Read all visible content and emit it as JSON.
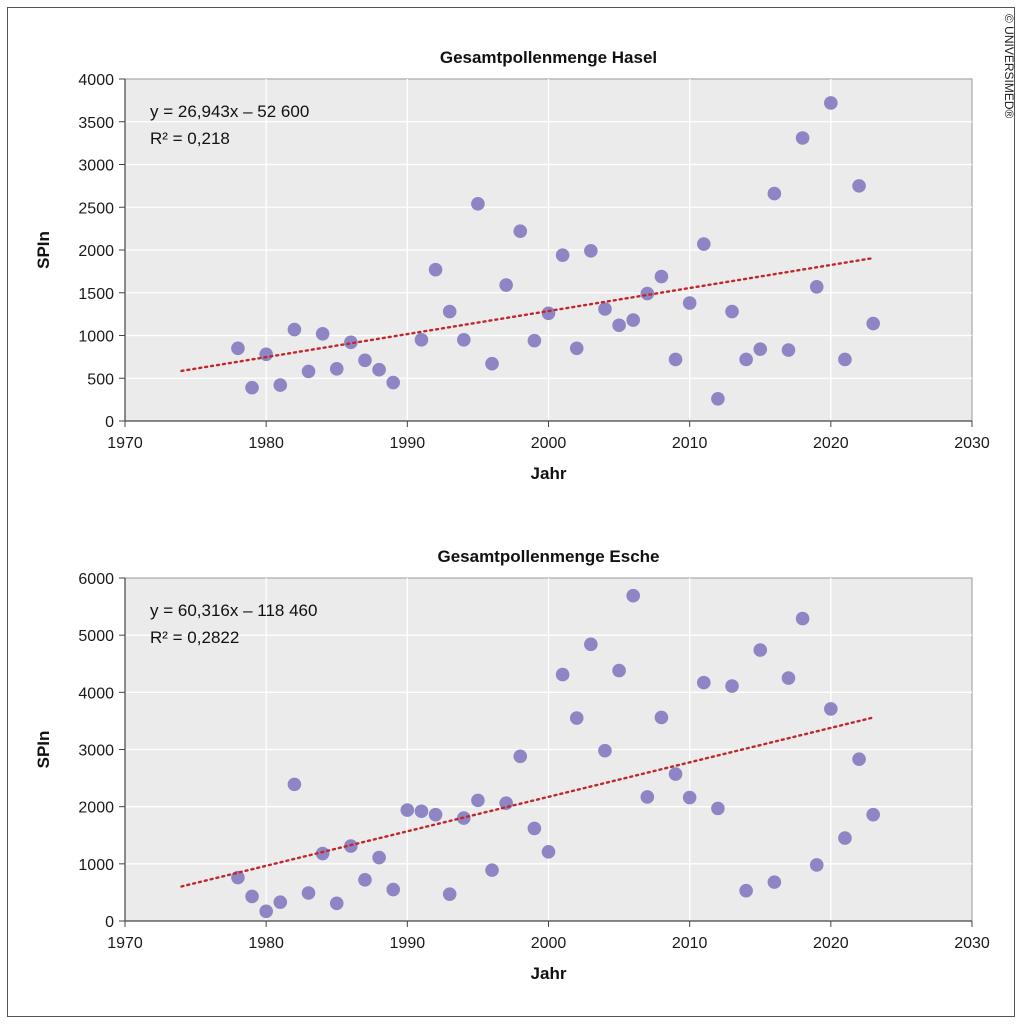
{
  "copyright": "© UNIVERSIMED®",
  "colors": {
    "point": "#8e86c4",
    "trend": "#c0282b",
    "plot_bg": "#ebebeb",
    "grid": "#ffffff"
  },
  "chart_data": [
    {
      "type": "scatter",
      "title": "Gesamtpollenmenge Hasel",
      "xlabel": "Jahr",
      "ylabel": "SPIn",
      "xlim": [
        1970,
        2030
      ],
      "ylim": [
        0,
        4000
      ],
      "xticks": [
        1970,
        1980,
        1990,
        2000,
        2010,
        2020,
        2030
      ],
      "yticks": [
        0,
        500,
        1000,
        1500,
        2000,
        2500,
        3000,
        3500,
        4000
      ],
      "grid": true,
      "trendline": {
        "equation": "y = 26,943x – 52 600",
        "r2": "R² = 0,218",
        "slope": 26.943,
        "intercept": -52600,
        "x_range": [
          1974,
          2023
        ]
      },
      "points": [
        {
          "x": 1978,
          "y": 850
        },
        {
          "x": 1979,
          "y": 390
        },
        {
          "x": 1980,
          "y": 780
        },
        {
          "x": 1981,
          "y": 420
        },
        {
          "x": 1982,
          "y": 1070
        },
        {
          "x": 1983,
          "y": 580
        },
        {
          "x": 1984,
          "y": 1020
        },
        {
          "x": 1985,
          "y": 610
        },
        {
          "x": 1986,
          "y": 920
        },
        {
          "x": 1987,
          "y": 710
        },
        {
          "x": 1988,
          "y": 600
        },
        {
          "x": 1989,
          "y": 450
        },
        {
          "x": 1991,
          "y": 950
        },
        {
          "x": 1992,
          "y": 1770
        },
        {
          "x": 1993,
          "y": 1280
        },
        {
          "x": 1994,
          "y": 950
        },
        {
          "x": 1995,
          "y": 2540
        },
        {
          "x": 1996,
          "y": 670
        },
        {
          "x": 1997,
          "y": 1590
        },
        {
          "x": 1998,
          "y": 2220
        },
        {
          "x": 1999,
          "y": 940
        },
        {
          "x": 2000,
          "y": 1260
        },
        {
          "x": 2001,
          "y": 1940
        },
        {
          "x": 2002,
          "y": 850
        },
        {
          "x": 2003,
          "y": 1990
        },
        {
          "x": 2004,
          "y": 1310
        },
        {
          "x": 2005,
          "y": 1120
        },
        {
          "x": 2006,
          "y": 1180
        },
        {
          "x": 2007,
          "y": 1490
        },
        {
          "x": 2008,
          "y": 1690
        },
        {
          "x": 2009,
          "y": 720
        },
        {
          "x": 2010,
          "y": 1380
        },
        {
          "x": 2011,
          "y": 2070
        },
        {
          "x": 2012,
          "y": 260
        },
        {
          "x": 2013,
          "y": 1280
        },
        {
          "x": 2014,
          "y": 720
        },
        {
          "x": 2015,
          "y": 840
        },
        {
          "x": 2016,
          "y": 2660
        },
        {
          "x": 2017,
          "y": 830
        },
        {
          "x": 2018,
          "y": 3310
        },
        {
          "x": 2019,
          "y": 1570
        },
        {
          "x": 2020,
          "y": 3720
        },
        {
          "x": 2021,
          "y": 720
        },
        {
          "x": 2022,
          "y": 2750
        },
        {
          "x": 2023,
          "y": 1140
        }
      ]
    },
    {
      "type": "scatter",
      "title": "Gesamtpollenmenge Esche",
      "xlabel": "Jahr",
      "ylabel": "SPIn",
      "xlim": [
        1970,
        2030
      ],
      "ylim": [
        0,
        6000
      ],
      "xticks": [
        1970,
        1980,
        1990,
        2000,
        2010,
        2020,
        2030
      ],
      "yticks": [
        0,
        1000,
        2000,
        3000,
        4000,
        5000,
        6000
      ],
      "grid": true,
      "trendline": {
        "equation": "y = 60,316x – 118 460",
        "r2": "R² = 0,2822",
        "slope": 60.316,
        "intercept": -118460,
        "x_range": [
          1974,
          2023
        ]
      },
      "points": [
        {
          "x": 1978,
          "y": 760
        },
        {
          "x": 1979,
          "y": 430
        },
        {
          "x": 1980,
          "y": 170
        },
        {
          "x": 1981,
          "y": 330
        },
        {
          "x": 1982,
          "y": 2390
        },
        {
          "x": 1983,
          "y": 490
        },
        {
          "x": 1984,
          "y": 1180
        },
        {
          "x": 1985,
          "y": 310
        },
        {
          "x": 1986,
          "y": 1310
        },
        {
          "x": 1987,
          "y": 720
        },
        {
          "x": 1988,
          "y": 1110
        },
        {
          "x": 1989,
          "y": 550
        },
        {
          "x": 1990,
          "y": 1940
        },
        {
          "x": 1991,
          "y": 1920
        },
        {
          "x": 1992,
          "y": 1860
        },
        {
          "x": 1993,
          "y": 470
        },
        {
          "x": 1994,
          "y": 1800
        },
        {
          "x": 1995,
          "y": 2110
        },
        {
          "x": 1996,
          "y": 890
        },
        {
          "x": 1997,
          "y": 2060
        },
        {
          "x": 1998,
          "y": 2880
        },
        {
          "x": 1999,
          "y": 1620
        },
        {
          "x": 2000,
          "y": 1210
        },
        {
          "x": 2001,
          "y": 4310
        },
        {
          "x": 2002,
          "y": 3550
        },
        {
          "x": 2003,
          "y": 4840
        },
        {
          "x": 2004,
          "y": 2980
        },
        {
          "x": 2005,
          "y": 4380
        },
        {
          "x": 2006,
          "y": 5690
        },
        {
          "x": 2007,
          "y": 2170
        },
        {
          "x": 2008,
          "y": 3560
        },
        {
          "x": 2009,
          "y": 2570
        },
        {
          "x": 2010,
          "y": 2160
        },
        {
          "x": 2011,
          "y": 4170
        },
        {
          "x": 2012,
          "y": 1970
        },
        {
          "x": 2013,
          "y": 4110
        },
        {
          "x": 2014,
          "y": 530
        },
        {
          "x": 2015,
          "y": 4740
        },
        {
          "x": 2016,
          "y": 680
        },
        {
          "x": 2017,
          "y": 4250
        },
        {
          "x": 2018,
          "y": 5290
        },
        {
          "x": 2019,
          "y": 980
        },
        {
          "x": 2020,
          "y": 3710
        },
        {
          "x": 2021,
          "y": 1450
        },
        {
          "x": 2022,
          "y": 2830
        },
        {
          "x": 2023,
          "y": 1860
        }
      ]
    }
  ]
}
